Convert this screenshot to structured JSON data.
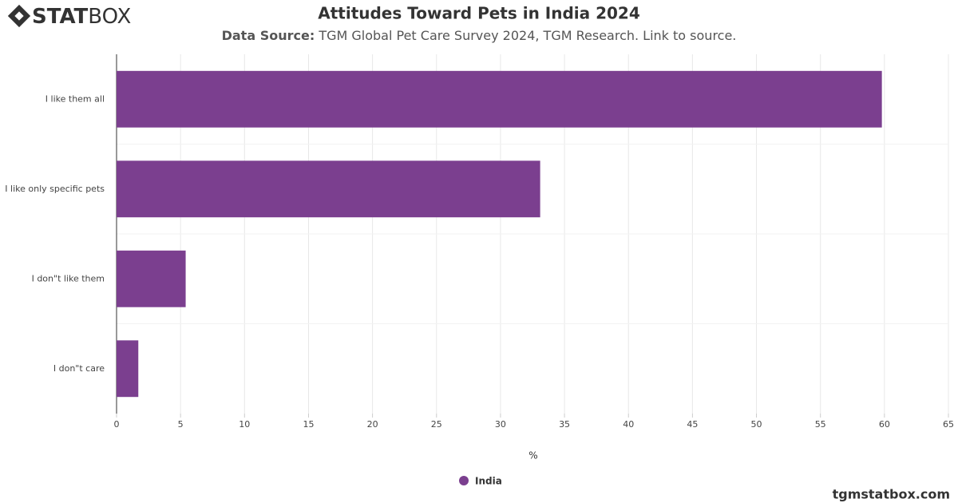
{
  "logo": {
    "bold": "STAT",
    "light": "BOX"
  },
  "footer": "tgmstatbox.com",
  "chart_data": {
    "type": "bar",
    "orientation": "horizontal",
    "title": "Attitudes Toward Pets in India 2024",
    "subtitle": {
      "label": "Data Source:",
      "text": "TGM Global Pet Care Survey 2024, TGM Research. Link to source."
    },
    "categories": [
      "I like them all",
      "I like only specific pets",
      "I don\"t like them",
      "I don\"t care"
    ],
    "series": [
      {
        "name": "India",
        "color": "#7b3f8f",
        "values": [
          59.8,
          33.1,
          5.4,
          1.7
        ]
      }
    ],
    "xlabel": "%",
    "xlim": [
      0,
      65
    ],
    "xticks": [
      0,
      5,
      10,
      15,
      20,
      25,
      30,
      35,
      40,
      45,
      50,
      55,
      60,
      65
    ],
    "grid": true,
    "legend": "bottom"
  }
}
